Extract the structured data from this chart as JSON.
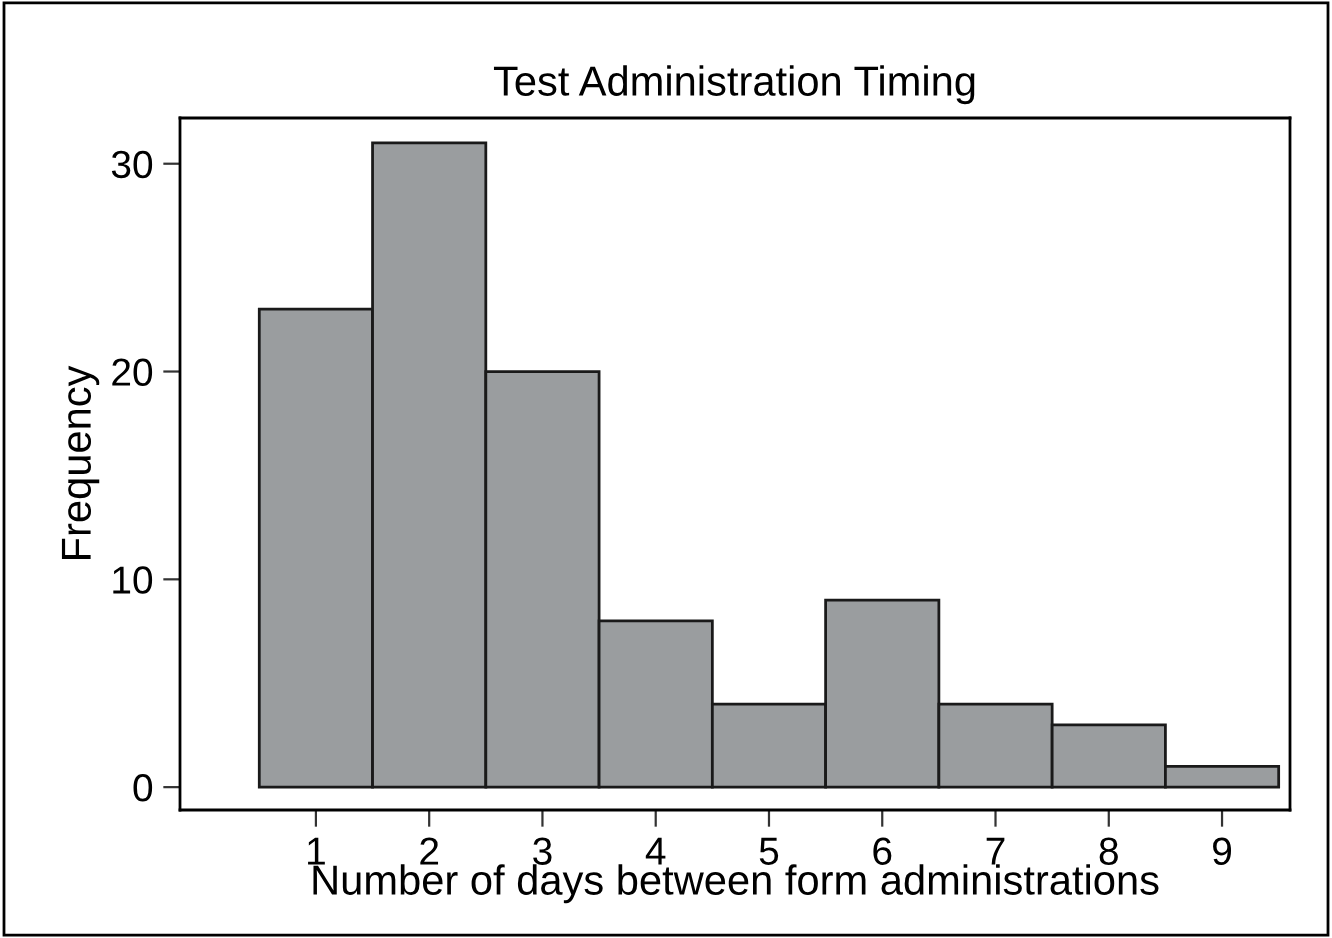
{
  "chart_data": {
    "type": "histogram",
    "title": "Test Administration Timing",
    "xlabel": "Number of days between form administrations",
    "ylabel": "Frequency",
    "bins": [
      0.5,
      1.5,
      2.5,
      3.5,
      4.5,
      5.5,
      6.5,
      7.5,
      8.5,
      9.5
    ],
    "values": [
      23,
      31,
      20,
      8,
      4,
      9,
      4,
      3,
      1
    ],
    "color": "#9a9d9f",
    "xlim": [
      -0.2,
      9.6
    ],
    "xticks": [
      1,
      2,
      3,
      4,
      5,
      6,
      7,
      8,
      9
    ],
    "ylim": [
      -1.1,
      32.2
    ],
    "yticks": [
      0,
      10,
      20,
      30
    ],
    "grid": false
  }
}
